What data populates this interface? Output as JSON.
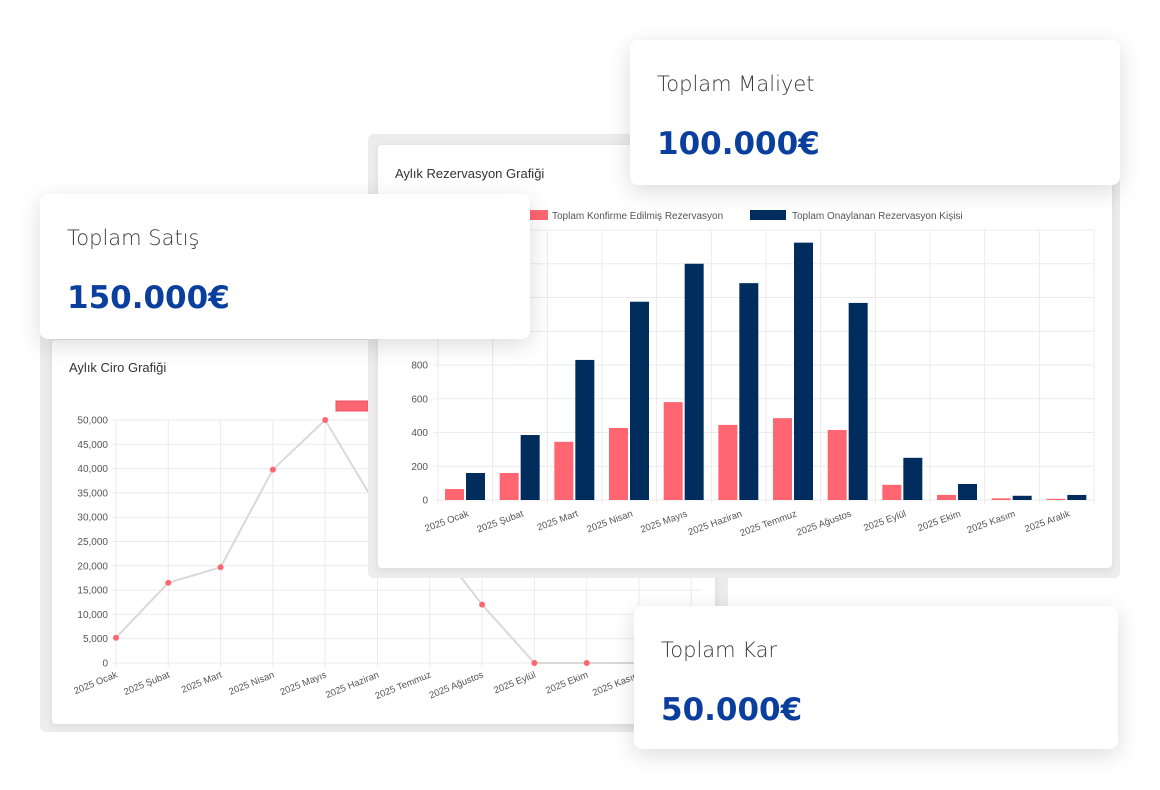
{
  "cards": {
    "sales": {
      "label": "Toplam Satış",
      "value": "150.000€"
    },
    "cost": {
      "label": "Toplam Maliyet",
      "value": "100.000€"
    },
    "profit": {
      "label": "Toplam Kar",
      "value": "50.000€"
    }
  },
  "colors": {
    "accent_blue": "#0b3f9e",
    "series_red": "#ff6672",
    "series_navy": "#002c5e",
    "line_gray": "#d9d9d9"
  },
  "chart_data": [
    {
      "type": "line",
      "title": "Aylık Ciro Grafiği",
      "categories": [
        "2025 Ocak",
        "2025 Şubat",
        "2025 Mart",
        "2025 Nisan",
        "2025 Mayıs",
        "2025 Haziran",
        "2025 Temmuz",
        "2025 Ağustos",
        "2025 Eylül",
        "2025 Ekim",
        "2025 Kasım",
        "2025 Aralık"
      ],
      "series": [
        {
          "values": [
            5200,
            16500,
            19700,
            39800,
            50000,
            32000,
            26000,
            12000,
            0,
            0,
            0,
            0
          ],
          "color": "#ff6672"
        }
      ],
      "yticks": [
        "0",
        "5,000",
        "10,000",
        "15,000",
        "20,000",
        "25,000",
        "30,000",
        "35,000",
        "40,000",
        "45,000",
        "50,000"
      ],
      "ylim": [
        0,
        50000
      ],
      "grid": true,
      "legend": "top"
    },
    {
      "type": "bar",
      "title": "Aylık Rezervasyon Grafiği",
      "categories": [
        "2025 Ocak",
        "2025 Şubat",
        "2025 Mart",
        "2025 Nisan",
        "2025 Mayıs",
        "2025 Haziran",
        "2025 Temmuz",
        "2025 Ağustos",
        "2025 Eylül",
        "2025 Ekim",
        "2025 Kasım",
        "2025 Aralık"
      ],
      "series": [
        {
          "name": "Toplam Konfirme Edilmiş Rezervasyon",
          "color": "#ff6672",
          "values": [
            65,
            160,
            345,
            427,
            580,
            445,
            485,
            415,
            90,
            30,
            10,
            7
          ]
        },
        {
          "name": "Toplam Onaylanan Rezervasyon Kişisi",
          "color": "#002c5e",
          "values": [
            160,
            385,
            830,
            1175,
            1400,
            1285,
            1525,
            1168,
            250,
            95,
            25,
            30
          ]
        }
      ],
      "yticks": [
        "0",
        "200",
        "400",
        "600",
        "800"
      ],
      "ylim": [
        0,
        1600
      ],
      "grid": true,
      "legend": "top"
    }
  ]
}
